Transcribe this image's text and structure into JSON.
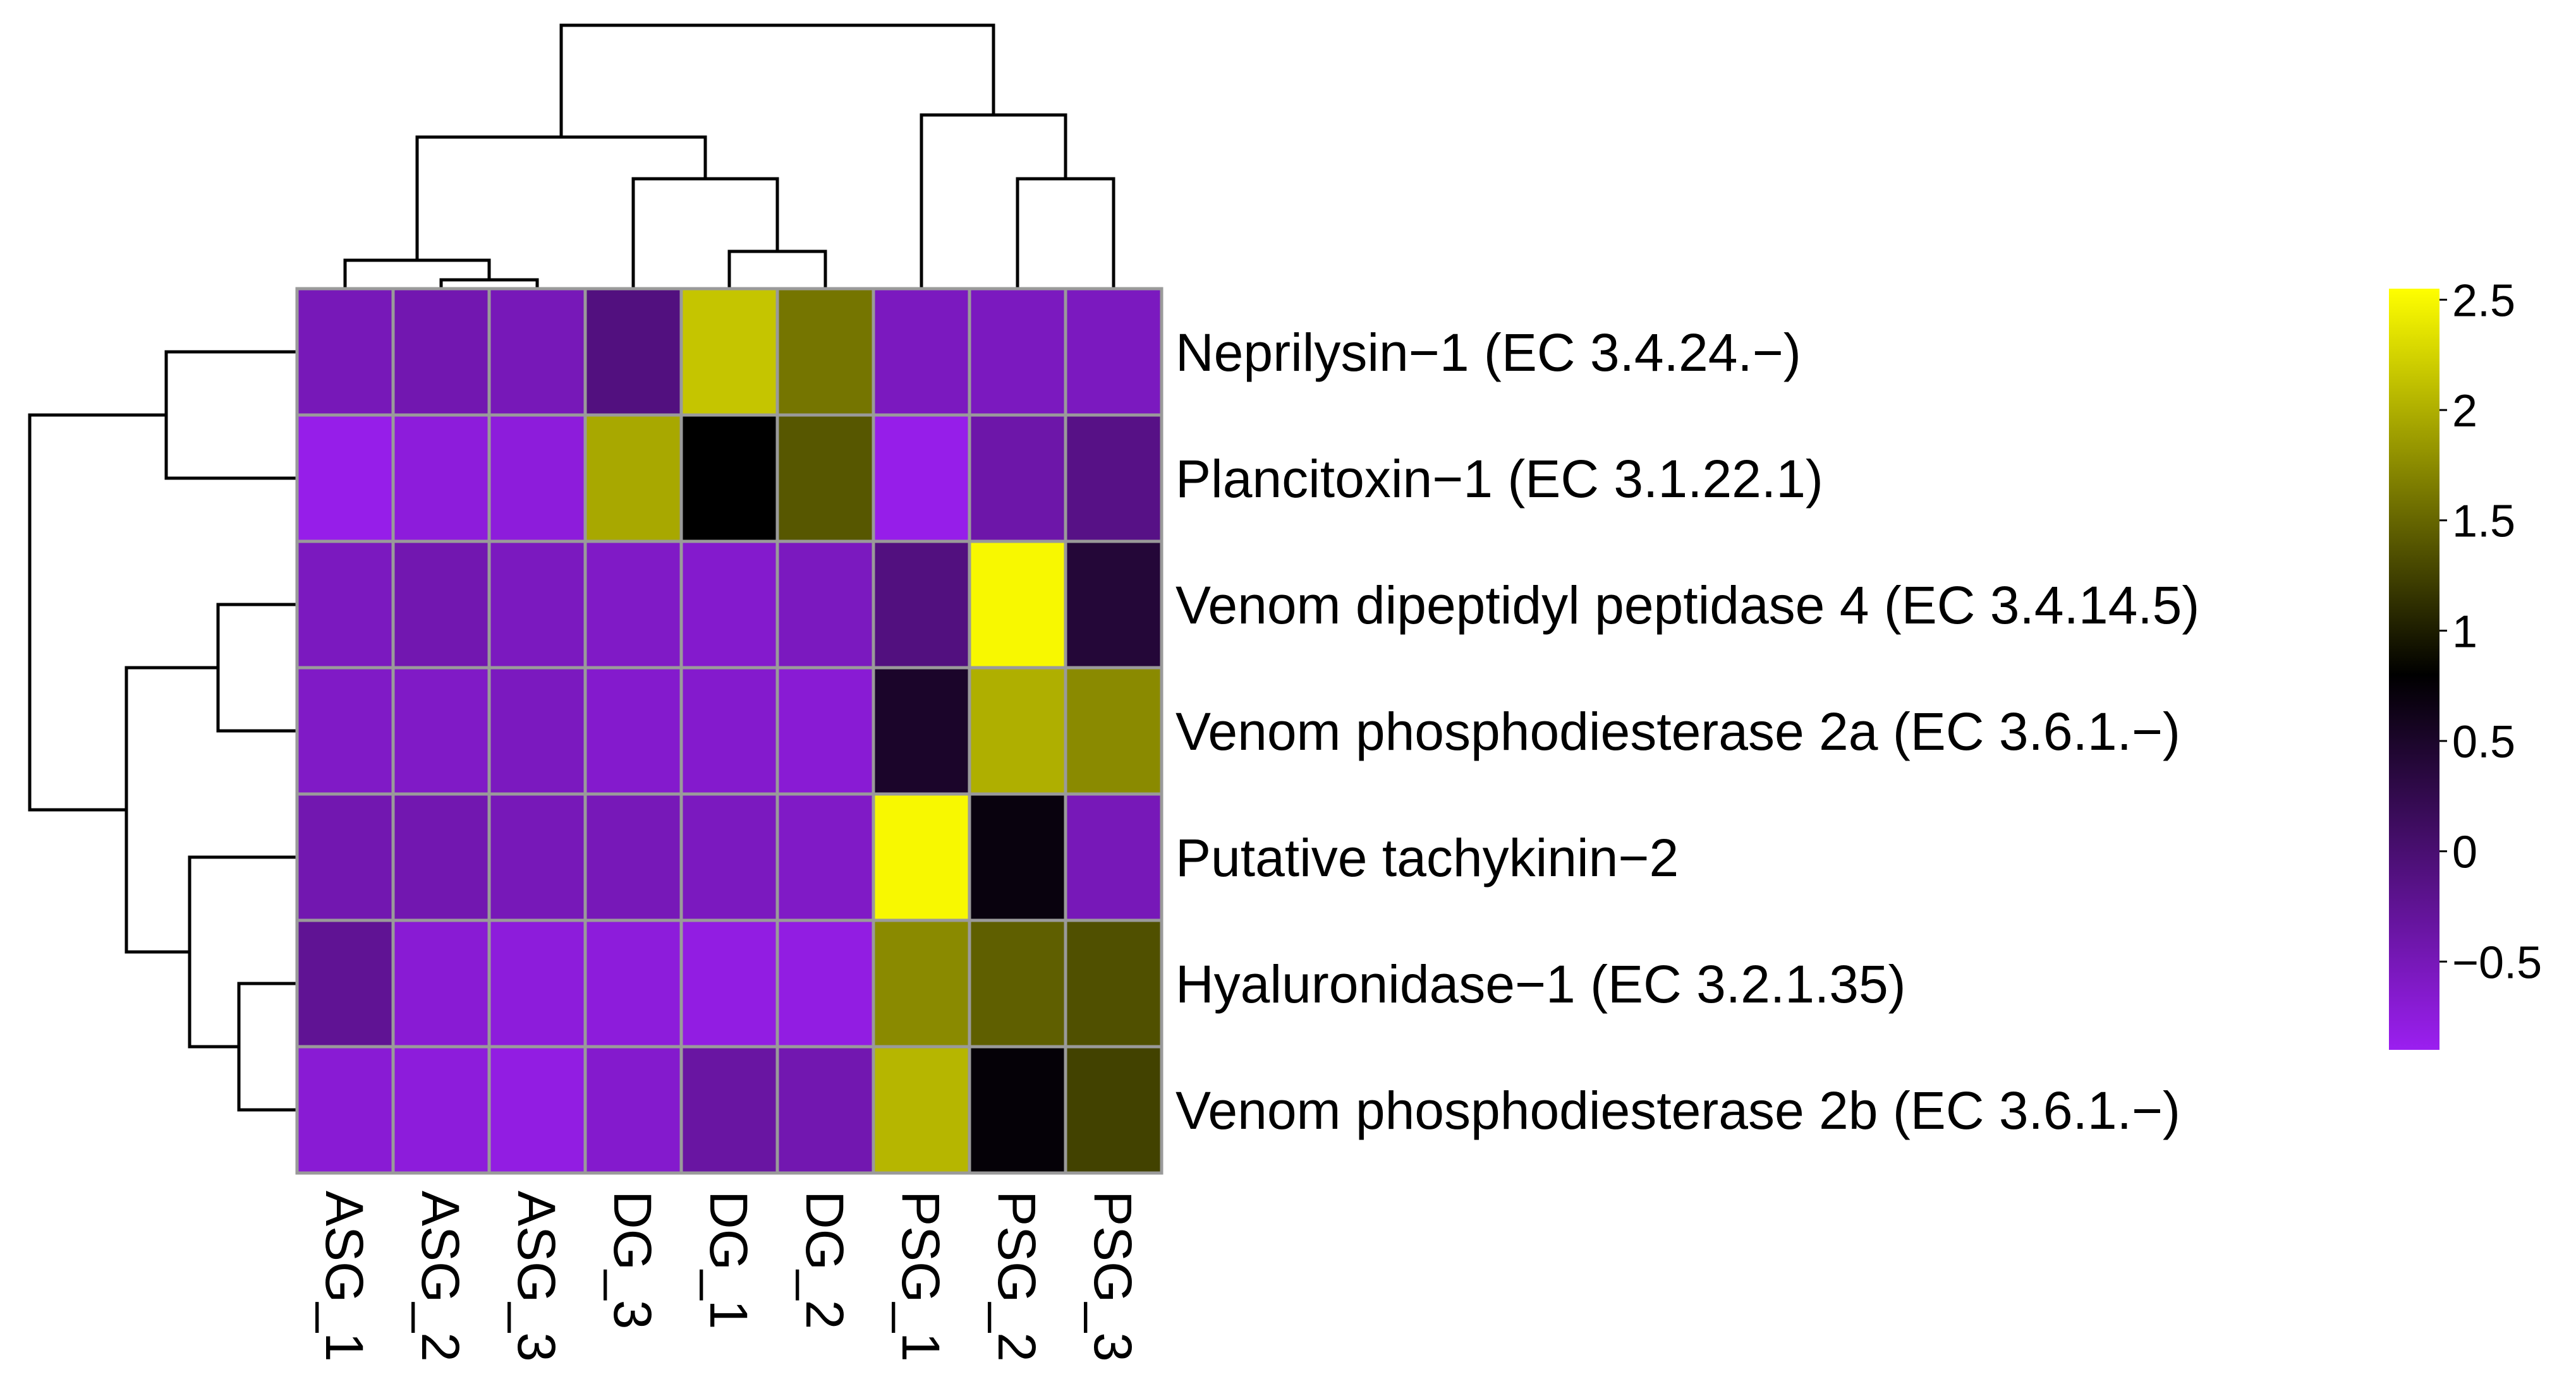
{
  "chart_data": {
    "type": "heatmap",
    "title": "",
    "columns": [
      "ASG_1",
      "ASG_2",
      "ASG_3",
      "DG_3",
      "DG_1",
      "DG_2",
      "PSG_1",
      "PSG_2",
      "PSG_3"
    ],
    "rows": [
      "Neprilysin−1 (EC 3.4.24.−)",
      "Plancitoxin−1 (EC 3.1.22.1)",
      "Venom dipeptidyl peptidase 4 (EC 3.4.14.5)",
      "Venom phosphodiesterase 2a (EC 3.6.1.−)",
      "Putative tachykinin−2",
      "Hyaluronidase−1 (EC 3.2.1.35)",
      "Venom phosphodiesterase 2b (EC 3.6.1.−)"
    ],
    "values": [
      [
        -0.5,
        -0.45,
        -0.5,
        -0.1,
        2.15,
        1.6,
        -0.55,
        -0.55,
        -0.55
      ],
      [
        -0.85,
        -0.75,
        -0.75,
        1.95,
        0.8,
        1.4,
        -0.85,
        -0.4,
        -0.15
      ],
      [
        -0.55,
        -0.45,
        -0.55,
        -0.6,
        -0.65,
        -0.55,
        -0.1,
        2.5,
        0.4
      ],
      [
        -0.6,
        -0.6,
        -0.55,
        -0.65,
        -0.65,
        -0.7,
        0.5,
        2.0,
        1.75
      ],
      [
        -0.45,
        -0.45,
        -0.5,
        -0.5,
        -0.55,
        -0.6,
        2.5,
        0.7,
        -0.5
      ],
      [
        -0.25,
        -0.7,
        -0.75,
        -0.75,
        -0.8,
        -0.8,
        1.75,
        1.45,
        1.35
      ],
      [
        -0.7,
        -0.75,
        -0.8,
        -0.65,
        -0.35,
        -0.45,
        2.05,
        0.75,
        1.25
      ]
    ],
    "colorbar": {
      "ticks": [
        "2.5",
        "2",
        "1.5",
        "1",
        "0.5",
        "0",
        "−0.5"
      ],
      "tick_values": [
        2.5,
        2,
        1.5,
        1,
        0.5,
        0,
        -0.5
      ],
      "min": -0.9,
      "max": 2.55,
      "colors": {
        "low": "#9b1ff0",
        "mid": "#000000",
        "high": "#ffff00",
        "mid_value": 0.8
      }
    },
    "cell_border_color": "#9a9a9a",
    "column_dendrogram": "((ASG_1,(ASG_2,ASG_3)),(DG_3,(DG_1,DG_2))),(PSG_1,(PSG_2,PSG_3))",
    "row_dendrogram": "(Neprilysin-1,Plancitoxin-1),((Venom dipeptidyl peptidase 4,Venom phosphodiesterase 2a),(Putative tachykinin-2,(Hyaluronidase-1,Venom phosphodiesterase 2b)))"
  }
}
